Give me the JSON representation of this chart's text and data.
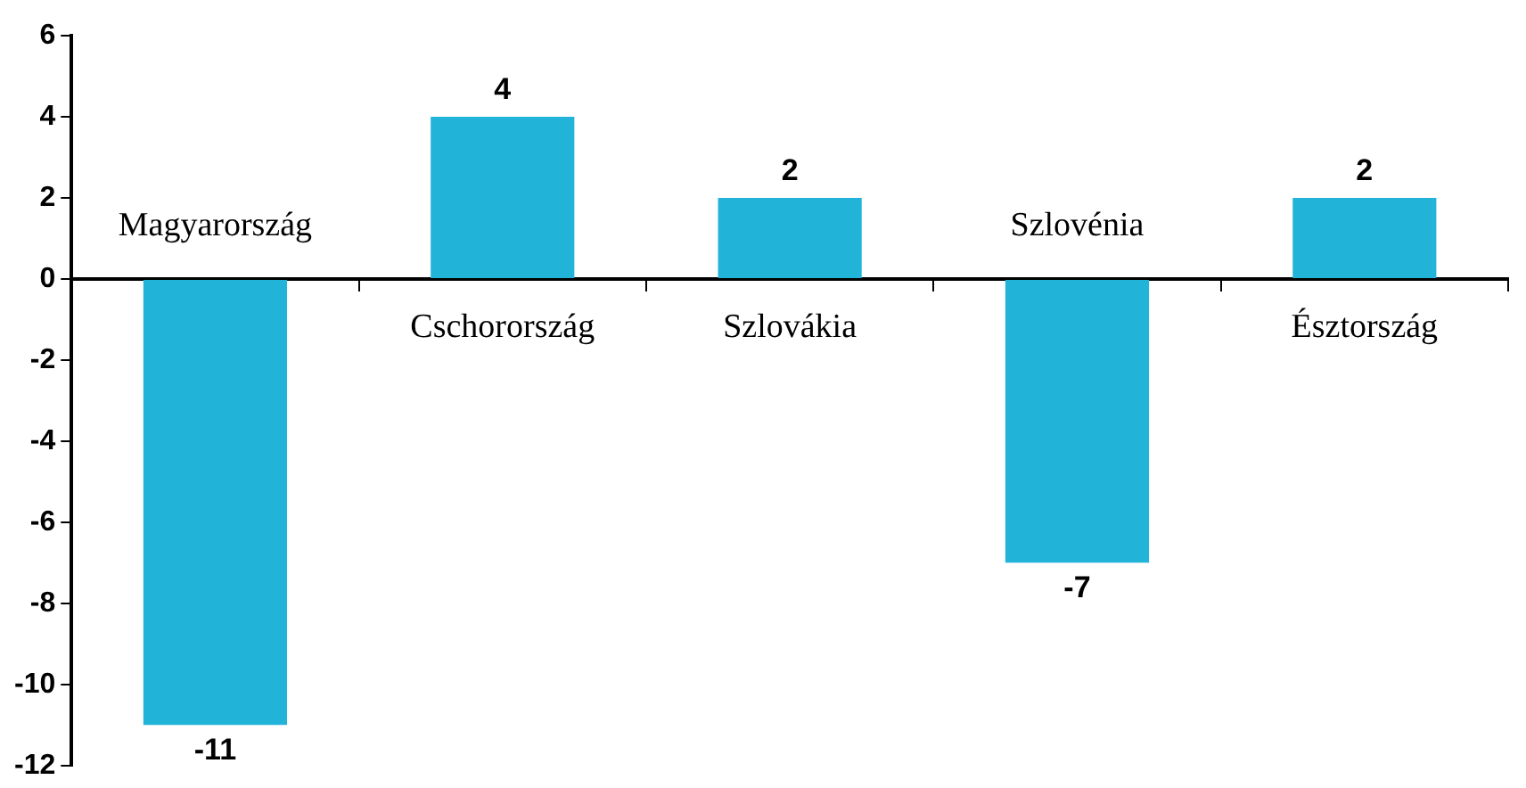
{
  "chart_data": {
    "type": "bar",
    "categories": [
      "Magyarország",
      "Cschorország",
      "Szlovákia",
      "Szlovénia",
      "Észtország"
    ],
    "values": [
      -11,
      4,
      2,
      -7,
      2
    ],
    "color": "#22b4d8",
    "data_labels": true,
    "grid": false,
    "legend": false,
    "ylim": [
      -12,
      6
    ],
    "yticks": [
      -12,
      -10,
      -8,
      -6,
      -4,
      -2,
      0,
      2,
      4,
      6
    ]
  }
}
